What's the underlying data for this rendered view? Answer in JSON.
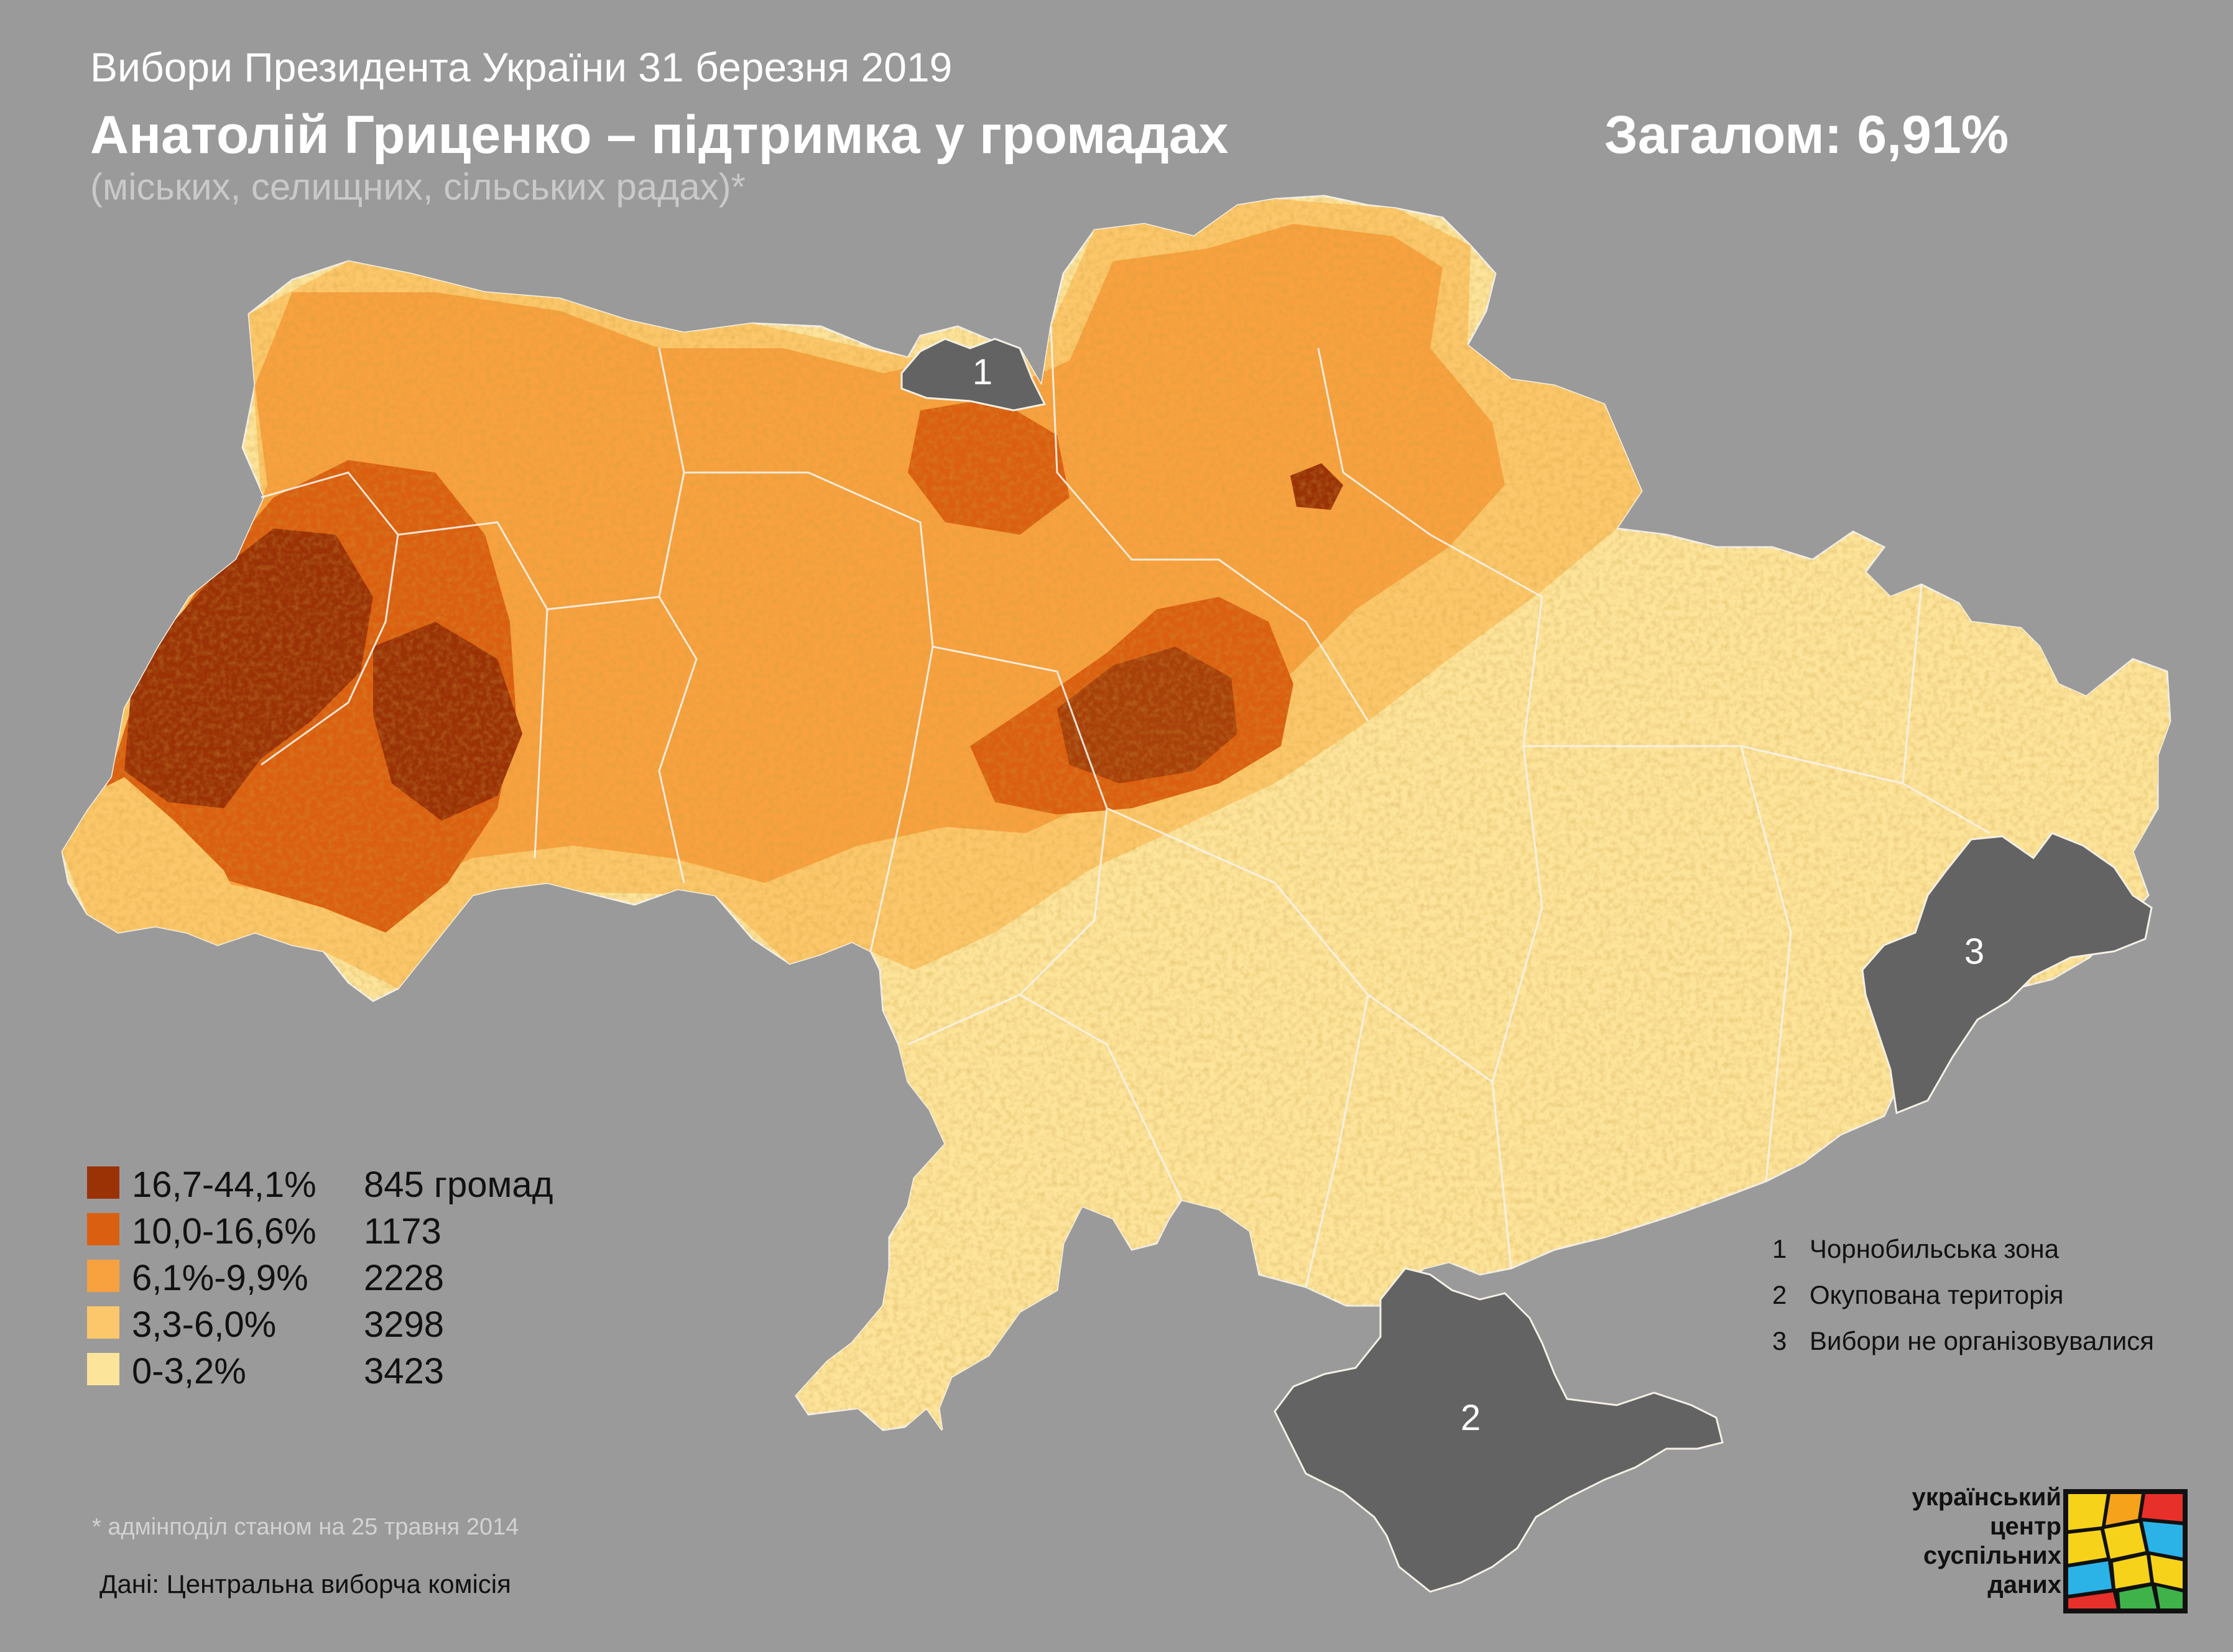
{
  "header": {
    "line1": "Вибори Президента України 31 березня 2019",
    "title": "Анатолій Гриценко – підтримка у громадах",
    "subtitle": "(міських, селищних, сільських радах)*",
    "total": "Загалом: 6,91%"
  },
  "map": {
    "zone_labels": [
      "1",
      "2",
      "3"
    ],
    "colors": {
      "background": "#9a9a9a",
      "excluded": "#636363",
      "bin_1": "#fde49b",
      "bin_2": "#fcc76a",
      "bin_3": "#f8a13f",
      "bin_4": "#db5f10",
      "bin_5": "#9b3206"
    }
  },
  "legend": {
    "items": [
      {
        "range": "16,7-44,1%",
        "count": "845 громад",
        "color": "#9b3206"
      },
      {
        "range": "10,0-16,6%",
        "count": "1173",
        "color": "#db5f10"
      },
      {
        "range": "6,1%-9,9%",
        "count": "2228",
        "color": "#f8a13f"
      },
      {
        "range": "3,3-6,0%",
        "count": "3298",
        "color": "#fcc76a"
      },
      {
        "range": "0-3,2%",
        "count": "3423",
        "color": "#fde49b"
      }
    ]
  },
  "notes": [
    {
      "num": "1",
      "text": "Чорнобильська зона"
    },
    {
      "num": "2",
      "text": "Окупована територія"
    },
    {
      "num": "3",
      "text": "Вибори не організовувалися"
    }
  ],
  "footer": {
    "admin_note": "* адмінподіл станом на 25 травня 2014",
    "source": "Дані: Центральна виборча комісія"
  },
  "logo": {
    "lines": [
      "український",
      "центр",
      "суспільних",
      "даних"
    ],
    "icon": "stained-glass-logo-icon"
  }
}
